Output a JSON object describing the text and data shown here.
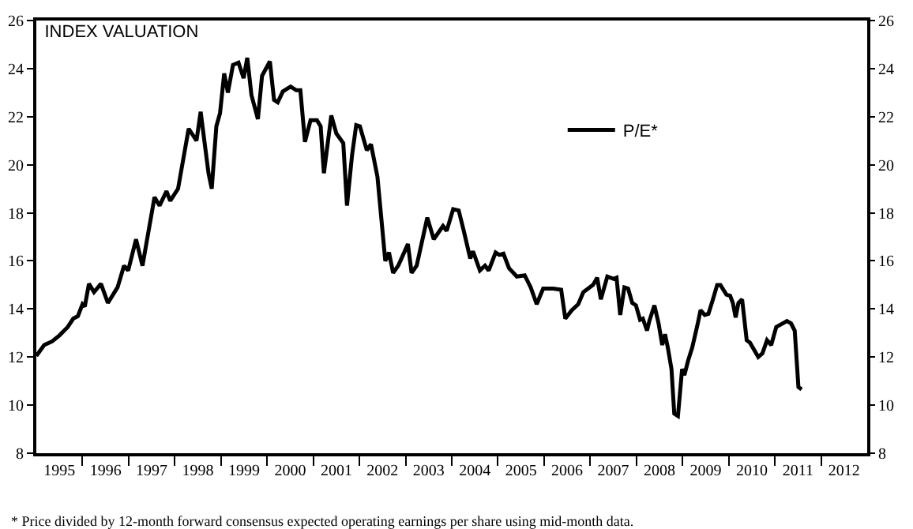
{
  "chart_data": {
    "type": "line",
    "title": "INDEX VALUATION",
    "annotations": [
      "* Price divided by 12-month forward consensus expected operating earnings per share using mid-month data."
    ],
    "xlim": [
      1995,
      2013
    ],
    "xticks": [
      {
        "value": 1995.5,
        "label": "1995"
      },
      {
        "value": 1996.5,
        "label": "1996"
      },
      {
        "value": 1997.5,
        "label": "1997"
      },
      {
        "value": 1998.5,
        "label": "1998"
      },
      {
        "value": 1999.5,
        "label": "1999"
      },
      {
        "value": 2000.5,
        "label": "2000"
      },
      {
        "value": 2001.5,
        "label": "2001"
      },
      {
        "value": 2002.5,
        "label": "2002"
      },
      {
        "value": 2003.5,
        "label": "2003"
      },
      {
        "value": 2004.5,
        "label": "2004"
      },
      {
        "value": 2005.5,
        "label": "2005"
      },
      {
        "value": 2006.5,
        "label": "2006"
      },
      {
        "value": 2007.5,
        "label": "2007"
      },
      {
        "value": 2008.5,
        "label": "2008"
      },
      {
        "value": 2009.5,
        "label": "2009"
      },
      {
        "value": 2010.5,
        "label": "2010"
      },
      {
        "value": 2011.5,
        "label": "2011"
      },
      {
        "value": 2012.5,
        "label": "2012"
      },
      {
        "value": 1996,
        "label": null
      },
      {
        "value": 1997,
        "label": null
      },
      {
        "value": 1998,
        "label": null
      },
      {
        "value": 1999,
        "label": null
      },
      {
        "value": 2000,
        "label": null
      },
      {
        "value": 2001,
        "label": null
      },
      {
        "value": 2002,
        "label": null
      },
      {
        "value": 2003,
        "label": null
      },
      {
        "value": 2004,
        "label": null
      },
      {
        "value": 2005,
        "label": null
      },
      {
        "value": 2006,
        "label": null
      },
      {
        "value": 2007,
        "label": null
      },
      {
        "value": 2008,
        "label": null
      },
      {
        "value": 2009,
        "label": null
      },
      {
        "value": 2010,
        "label": null
      },
      {
        "value": 2011,
        "label": null
      },
      {
        "value": 2012,
        "label": null
      }
    ],
    "ylim": [
      8,
      26
    ],
    "yticks": [
      8,
      10,
      12,
      14,
      16,
      18,
      20,
      22,
      24,
      26
    ],
    "y2lim": [
      8,
      26
    ],
    "y2ticks": [
      8,
      10,
      12,
      14,
      16,
      18,
      20,
      22,
      24,
      26
    ],
    "grid": false,
    "legend": "top right",
    "marker": "none",
    "line_style": "solid",
    "series": [
      {
        "name": "P/E*",
        "color": "#000000",
        "x": [
          1995.0,
          1995.17,
          1995.34,
          1995.5,
          1995.68,
          1995.8,
          1995.9,
          1996.0,
          1996.05,
          1996.14,
          1996.25,
          1996.4,
          1996.55,
          1996.76,
          1996.9,
          1996.99,
          1997.16,
          1997.3,
          1997.56,
          1997.67,
          1997.82,
          1997.9,
          1998.07,
          1998.3,
          1998.47,
          1998.56,
          1998.73,
          1998.8,
          1998.9,
          1998.98,
          1999.07,
          1999.15,
          1999.26,
          1999.38,
          1999.49,
          1999.57,
          1999.66,
          1999.8,
          1999.89,
          2000.06,
          2000.15,
          2000.23,
          2000.34,
          2000.51,
          2000.63,
          2000.72,
          2000.82,
          2000.94,
          2001.08,
          2001.16,
          2001.23,
          2001.39,
          2001.5,
          2001.65,
          2001.73,
          2001.84,
          2001.93,
          2002.01,
          2002.16,
          2002.25,
          2002.39,
          2002.56,
          2002.64,
          2002.73,
          2002.84,
          2003.05,
          2003.13,
          2003.24,
          2003.47,
          2003.61,
          2003.81,
          2003.89,
          2004.03,
          2004.15,
          2004.26,
          2004.4,
          2004.46,
          2004.61,
          2004.72,
          2004.8,
          2004.95,
          2005.03,
          2005.12,
          2005.24,
          2005.41,
          2005.58,
          2005.71,
          2005.84,
          2005.98,
          2006.2,
          2006.37,
          2006.46,
          2006.6,
          2006.74,
          2006.85,
          2007.06,
          2007.15,
          2007.23,
          2007.37,
          2007.51,
          2007.57,
          2007.65,
          2007.74,
          2007.82,
          2007.91,
          2007.99,
          2008.08,
          2008.14,
          2008.23,
          2008.28,
          2008.39,
          2008.48,
          2008.56,
          2008.62,
          2008.68,
          2008.76,
          2008.82,
          2008.9,
          2008.99,
          2009.04,
          2009.12,
          2009.21,
          2009.33,
          2009.39,
          2009.48,
          2009.56,
          2009.65,
          2009.75,
          2009.82,
          2009.95,
          2010.03,
          2010.09,
          2010.15,
          2010.21,
          2010.29,
          2010.39,
          2010.46,
          2010.64,
          2010.73,
          2010.83,
          2010.92,
          2011.03,
          2011.17,
          2011.26,
          2011.35,
          2011.43,
          2011.51,
          2011.58
        ],
        "values": [
          12.05,
          12.5,
          12.65,
          12.9,
          13.25,
          13.6,
          13.7,
          14.2,
          14.1,
          15.05,
          14.7,
          15.05,
          14.25,
          14.9,
          15.8,
          15.6,
          16.9,
          15.8,
          18.65,
          18.3,
          18.9,
          18.5,
          19.0,
          21.5,
          21.0,
          22.2,
          19.65,
          19.0,
          21.6,
          22.15,
          23.8,
          23.0,
          24.15,
          24.25,
          23.6,
          24.45,
          22.9,
          21.9,
          23.7,
          24.3,
          22.7,
          22.6,
          23.05,
          23.25,
          23.1,
          23.1,
          20.95,
          21.85,
          21.85,
          21.6,
          19.65,
          22.05,
          21.3,
          20.9,
          18.3,
          20.4,
          21.65,
          21.6,
          20.6,
          20.85,
          19.5,
          16.0,
          16.35,
          15.5,
          15.8,
          16.7,
          15.5,
          15.8,
          17.8,
          16.9,
          17.45,
          17.25,
          18.15,
          18.1,
          17.25,
          16.1,
          16.4,
          15.6,
          15.8,
          15.6,
          16.35,
          16.25,
          16.3,
          15.7,
          15.35,
          15.4,
          14.9,
          14.2,
          14.85,
          14.85,
          14.8,
          13.6,
          13.95,
          14.2,
          14.7,
          15.0,
          15.3,
          14.4,
          15.35,
          15.25,
          15.3,
          13.75,
          14.9,
          14.85,
          14.25,
          14.15,
          13.55,
          13.6,
          13.1,
          13.5,
          14.15,
          13.4,
          12.5,
          12.95,
          12.4,
          11.5,
          9.65,
          9.55,
          11.5,
          11.25,
          11.85,
          12.4,
          13.4,
          13.95,
          13.75,
          13.8,
          14.35,
          15.0,
          15.0,
          14.6,
          14.55,
          14.25,
          13.65,
          14.25,
          14.4,
          12.7,
          12.6,
          12.0,
          12.15,
          12.7,
          12.5,
          13.25,
          13.4,
          13.5,
          13.4,
          13.1,
          10.75,
          10.65
        ]
      }
    ]
  }
}
